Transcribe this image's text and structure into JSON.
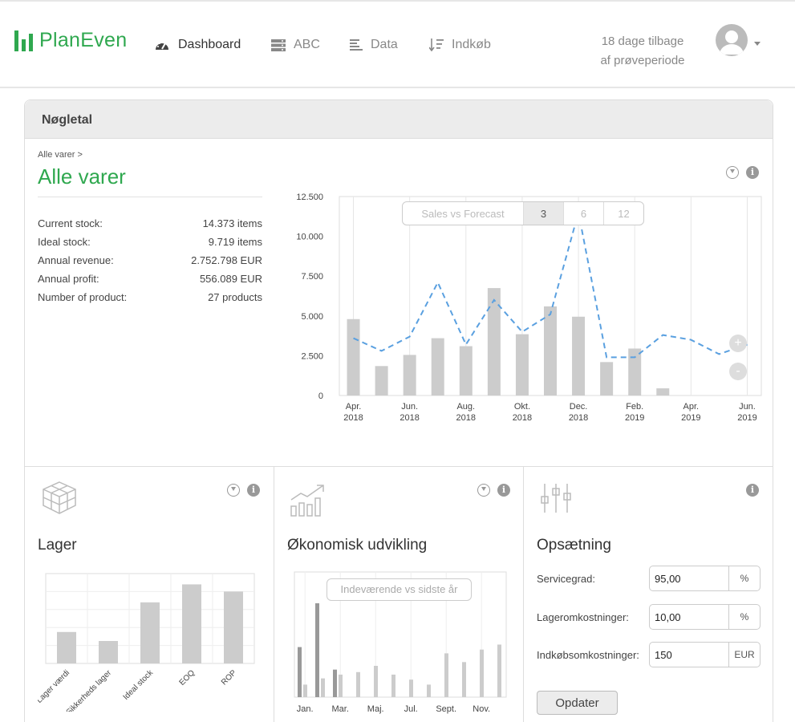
{
  "header": {
    "brand": "PlanEven",
    "nav": [
      {
        "label": "Dashboard",
        "icon": "speedometer-icon",
        "active": true
      },
      {
        "label": "ABC",
        "icon": "server-icon",
        "active": false
      },
      {
        "label": "Data",
        "icon": "text-lines-icon",
        "active": false
      },
      {
        "label": "Indkøb",
        "icon": "sort-icon",
        "active": false
      }
    ],
    "trial_line1": "18 dage tilbage",
    "trial_line2": "af prøveperiode",
    "brand_color": "#2fa84f"
  },
  "panel": {
    "title": "Nøgletal",
    "breadcrumb": "Alle varer >",
    "heading": "Alle varer",
    "stats": [
      {
        "label": "Current stock:",
        "value": "14.373 items"
      },
      {
        "label": "Ideal stock:",
        "value": "9.719 items"
      },
      {
        "label": "Annual revenue:",
        "value": "2.752.798 EUR"
      },
      {
        "label": "Annual profit:",
        "value": "556.089 EUR"
      },
      {
        "label": "Number of product:",
        "value": "27 products"
      }
    ],
    "segmented": {
      "label": "Sales vs Forecast",
      "options": [
        "3",
        "6",
        "12"
      ],
      "selected": "3"
    },
    "zoom_in": "+",
    "zoom_out": "-",
    "info_glyph": "i"
  },
  "chart_data": [
    {
      "type": "bar",
      "title": "",
      "ylim": [
        0,
        12500
      ],
      "yticks": [
        "0",
        "2.500",
        "5.000",
        "7.500",
        "10.000",
        "12.500"
      ],
      "ytick_values": [
        0,
        2500,
        5000,
        7500,
        10000,
        12500
      ],
      "x_tick_labels": [
        [
          "Apr.",
          "2018"
        ],
        [
          "Jun.",
          "2018"
        ],
        [
          "Aug.",
          "2018"
        ],
        [
          "Okt.",
          "2018"
        ],
        [
          "Dec.",
          "2018"
        ],
        [
          "Feb.",
          "2019"
        ],
        [
          "Apr.",
          "2019"
        ],
        [
          "Jun.",
          "2019"
        ]
      ],
      "months": [
        "2018-04",
        "2018-05",
        "2018-06",
        "2018-07",
        "2018-08",
        "2018-09",
        "2018-10",
        "2018-11",
        "2018-12",
        "2019-01",
        "2019-02",
        "2019-03",
        "2019-04",
        "2019-05",
        "2019-06"
      ],
      "series": [
        {
          "values": [
            4800,
            1850,
            2550,
            3600,
            3100,
            6750,
            3850,
            5600,
            4950,
            2100,
            2950,
            450,
            null,
            null,
            null
          ],
          "color": "#cccccc"
        },
        {
          "values": [
            3600,
            2800,
            3700,
            7100,
            3200,
            6000,
            4000,
            5100,
            11500,
            2400,
            2400,
            3800,
            3500,
            2600,
            3200
          ],
          "color": "#5aa0e0",
          "style": "dashed"
        }
      ],
      "grid": true
    },
    {
      "type": "bar",
      "title": "Lager",
      "categories": [
        "Lager værdi",
        "Sikkerheds lager",
        "Ideal stock",
        "EOQ",
        "ROP"
      ],
      "values": [
        35,
        25,
        68,
        88,
        80
      ],
      "ylim": [
        0,
        100
      ],
      "grid": true,
      "color": "#cccccc"
    },
    {
      "type": "bar",
      "title": "Økonomisk udvikling",
      "subtitle_label": "Indeværende vs sidste år",
      "categories": [
        "Jan.",
        "Feb.",
        "Mar.",
        "Apr.",
        "Maj.",
        "Jun.",
        "Jul.",
        "Aug.",
        "Sept.",
        "Okt.",
        "Nov.",
        "Dec."
      ],
      "tick_labels": [
        "Jan.",
        "Mar.",
        "Maj.",
        "Jul.",
        "Sept.",
        "Nov."
      ],
      "series": [
        {
          "values": [
            40,
            75,
            22,
            null,
            null,
            null,
            null,
            null,
            null,
            null,
            null,
            null
          ],
          "color": "#999999"
        },
        {
          "values": [
            10,
            15,
            18,
            20,
            25,
            18,
            14,
            10,
            35,
            28,
            38,
            42
          ],
          "color": "#cccccc"
        }
      ],
      "ylim": [
        0,
        100
      ],
      "grid": true
    }
  ],
  "cards": {
    "lager": {
      "title": "Lager",
      "icon": "cubes-icon"
    },
    "okonomi": {
      "title": "Økonomisk udvikling",
      "icon": "growth-chart-icon"
    },
    "opsaetning": {
      "title": "Opsætning",
      "icon": "sliders-icon",
      "fields": [
        {
          "label": "Servicegrad:",
          "value": "95,00",
          "unit": "%"
        },
        {
          "label": "Lageromkostninger:",
          "value": "10,00",
          "unit": "%"
        },
        {
          "label": "Indkøbsomkostninger:",
          "value": "150",
          "unit": "EUR"
        }
      ],
      "button": "Opdater"
    }
  }
}
